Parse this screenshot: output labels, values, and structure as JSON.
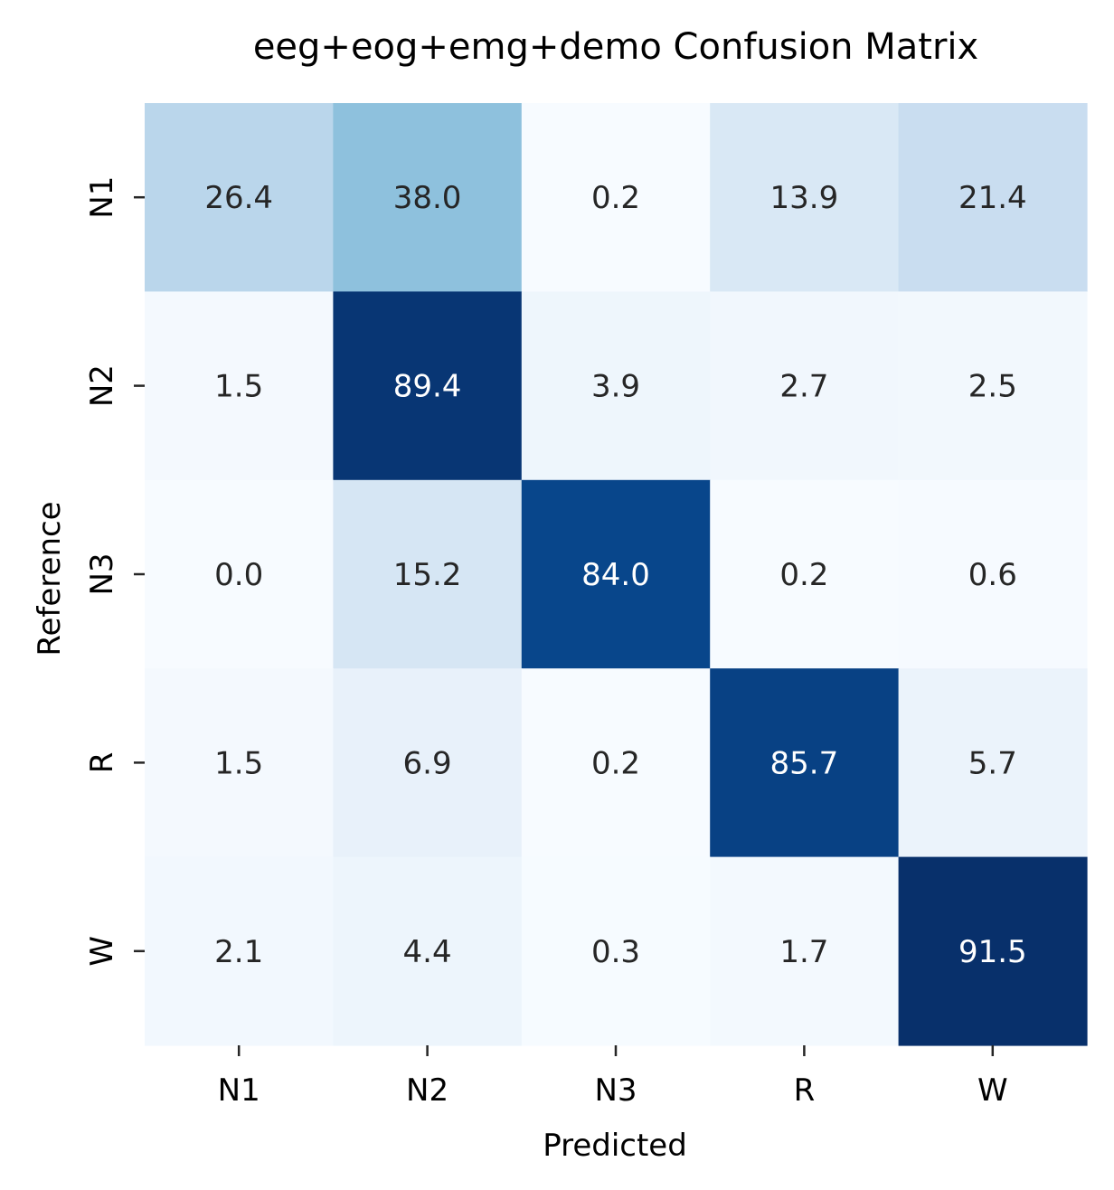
{
  "chart_data": {
    "type": "heatmap",
    "title": "eeg+eog+emg+demo Confusion Matrix",
    "xlabel": "Predicted",
    "ylabel": "Reference",
    "x_categories": [
      "N1",
      "N2",
      "N3",
      "R",
      "W"
    ],
    "y_categories": [
      "N1",
      "N2",
      "N3",
      "R",
      "W"
    ],
    "values": [
      [
        26.4,
        38.0,
        0.2,
        13.9,
        21.4
      ],
      [
        1.5,
        89.4,
        3.9,
        2.7,
        2.5
      ],
      [
        0.0,
        15.2,
        84.0,
        0.2,
        0.6
      ],
      [
        1.5,
        6.9,
        0.2,
        85.7,
        5.7
      ],
      [
        2.1,
        4.4,
        0.3,
        1.7,
        91.5
      ]
    ],
    "colormap": "Blues",
    "value_range": [
      0,
      91.5
    ],
    "annotation_format": "0.0",
    "colors": {
      "low": "#f7fbff",
      "high": "#08306b",
      "dark_text": "#262626",
      "light_text": "#ffffff"
    }
  }
}
